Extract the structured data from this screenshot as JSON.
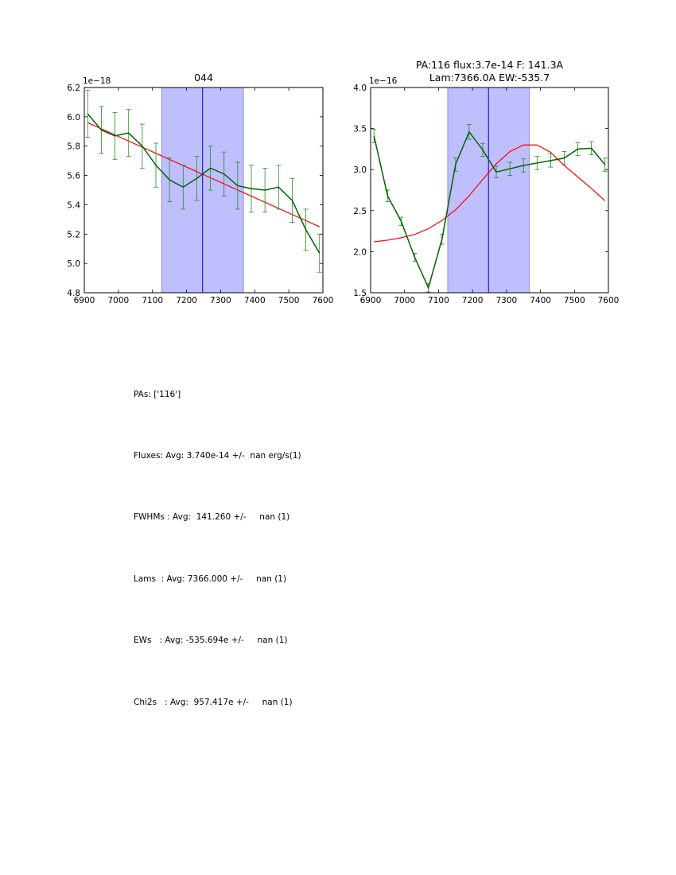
{
  "chart_data": [
    {
      "type": "line",
      "title": [
        "044"
      ],
      "exponent_label": "1e−18",
      "xlim": [
        6900,
        7600
      ],
      "ylim": [
        4.8,
        6.2
      ],
      "xticks": [
        6900,
        7000,
        7100,
        7200,
        7300,
        7400,
        7500,
        7600
      ],
      "yticks": [
        4.8,
        5.0,
        5.2,
        5.4,
        5.6,
        5.8,
        6.0,
        6.2
      ],
      "ytick_labels": [
        "4.8",
        "5.0",
        "5.2",
        "5.4",
        "5.6",
        "5.8",
        "6.0",
        "6.2"
      ],
      "shaded_region": [
        7127,
        7367
      ],
      "center_line": 7247,
      "colors": {
        "data": "#006400",
        "errorbar": "#228b22",
        "model": "#ff0000",
        "band_fill": "#bfbfff",
        "band_edge": "#8080c0",
        "center": "#0000cc"
      },
      "series": [
        {
          "name": "data",
          "x": [
            6910,
            6950,
            6990,
            7030,
            7070,
            7110,
            7150,
            7190,
            7230,
            7270,
            7310,
            7350,
            7390,
            7430,
            7470,
            7510,
            7550,
            7590
          ],
          "y": [
            6.02,
            5.91,
            5.87,
            5.89,
            5.8,
            5.67,
            5.57,
            5.52,
            5.58,
            5.65,
            5.61,
            5.53,
            5.51,
            5.5,
            5.52,
            5.43,
            5.23,
            5.07
          ],
          "err": [
            0.16,
            0.16,
            0.16,
            0.16,
            0.15,
            0.15,
            0.15,
            0.15,
            0.15,
            0.15,
            0.15,
            0.16,
            0.16,
            0.15,
            0.15,
            0.15,
            0.14,
            0.13
          ]
        },
        {
          "name": "model",
          "x": [
            6910,
            7590
          ],
          "y": [
            5.96,
            5.25
          ]
        }
      ]
    },
    {
      "type": "line",
      "title": [
        "PA:116 flux:3.7e-14 F: 141.3A",
        "Lam:7366.0A EW:-535.7"
      ],
      "exponent_label": "1e−16",
      "xlim": [
        6900,
        7600
      ],
      "ylim": [
        1.5,
        4.0
      ],
      "xticks": [
        6900,
        7000,
        7100,
        7200,
        7300,
        7400,
        7500,
        7600
      ],
      "yticks": [
        1.5,
        2.0,
        2.5,
        3.0,
        3.5,
        4.0
      ],
      "ytick_labels": [
        "1.5",
        "2.0",
        "2.5",
        "3.0",
        "3.5",
        "4.0"
      ],
      "shaded_region": [
        7127,
        7367
      ],
      "center_line": 7247,
      "colors": {
        "data": "#006400",
        "errorbar": "#228b22",
        "model": "#ff0000",
        "band_fill": "#bfbfff",
        "band_edge": "#8080c0",
        "center": "#0000cc"
      },
      "series": [
        {
          "name": "data",
          "x": [
            6910,
            6950,
            6990,
            7030,
            7070,
            7110,
            7150,
            7190,
            7230,
            7270,
            7310,
            7350,
            7390,
            7430,
            7470,
            7510,
            7550,
            7590
          ],
          "y": [
            3.41,
            2.68,
            2.37,
            1.93,
            1.56,
            2.15,
            3.06,
            3.46,
            3.24,
            2.97,
            3.01,
            3.05,
            3.08,
            3.11,
            3.14,
            3.25,
            3.26,
            3.06
          ],
          "err": [
            0.08,
            0.07,
            0.05,
            0.05,
            0.05,
            0.06,
            0.08,
            0.09,
            0.08,
            0.07,
            0.08,
            0.08,
            0.08,
            0.08,
            0.08,
            0.08,
            0.08,
            0.08
          ]
        },
        {
          "name": "model",
          "x": [
            6910,
            6950,
            6990,
            7030,
            7070,
            7110,
            7150,
            7190,
            7230,
            7270,
            7310,
            7350,
            7390,
            7430,
            7470,
            7510,
            7550,
            7590
          ],
          "y": [
            2.12,
            2.14,
            2.17,
            2.21,
            2.28,
            2.38,
            2.51,
            2.68,
            2.88,
            3.07,
            3.22,
            3.3,
            3.3,
            3.21,
            3.05,
            2.91,
            2.77,
            2.62
          ]
        }
      ]
    }
  ],
  "stats": [
    "PAs: ['116']",
    "Fluxes: Avg: 3.740e-14 +/-  nan erg/s(1)",
    "FWHMs : Avg:  141.260 +/-     nan (1)",
    "Lams  : Avg: 7366.000 +/-     nan (1)",
    "EWs   : Avg: -535.694e +/-     nan (1)",
    "Chi2s   : Avg:  957.417e +/-     nan (1)"
  ]
}
